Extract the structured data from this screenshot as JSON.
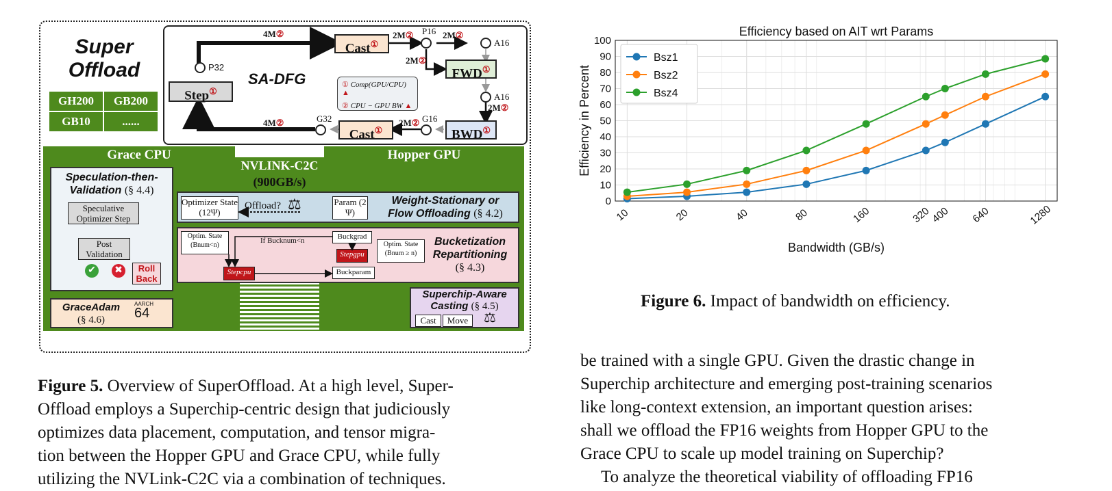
{
  "figure5": {
    "title_line1": "Super",
    "title_line2": "Offload",
    "chips": [
      "GH200",
      "GB200",
      "GB10",
      "......"
    ],
    "dfg_label": "SA-DFG",
    "nodes": {
      "cast": "Cast",
      "fwd": "FWD",
      "bwd": "BWD",
      "step": "Step"
    },
    "circles": {
      "p16": "P16",
      "a16_top": "A16",
      "a16_bot": "A16",
      "g16": "G16",
      "g32": "G32",
      "p32": "P32"
    },
    "edge_4m": "4M",
    "edge_2m": "2M",
    "mark1": "①",
    "mark2": "②",
    "legend": {
      "comp": "Comp(GPU/CPU)",
      "bw": "CPU − GPU BW"
    },
    "grace_cpu": "Grace CPU",
    "hopper_gpu": "Hopper GPU",
    "nvlink": "NVLINK-C2C",
    "nvlink_bw": "(900GB/s)",
    "spec_title": "Speculation-then-",
    "spec_title2": "Validation",
    "spec_ref": "(§ 4.4)",
    "spec_step": "Speculative Optimizer Step",
    "post_val": "Post Validation",
    "roll_back": "Roll Back",
    "graceadam": "GraceAdam",
    "graceadam_ref": "(§ 4.6)",
    "aarch": "AARCH",
    "aarch_num": "64",
    "optimizer_state": "Optimizer State (12Ψ)",
    "offload_q": "Offload?",
    "param": "Param (2 Ψ)",
    "ws_title": "Weight-Stationary or",
    "ws_title2": "Flow Offloading",
    "ws_ref": "(§ 4.2)",
    "optim_state_lt": "Optim. State (Bnum<n)",
    "if_buck": "If Bucknum<n",
    "buck_grad": "Buckgrad",
    "step_gpu": "Stepgpu",
    "step_cpu": "Stepcpu",
    "buck_param": "Buckparam",
    "optim_state_ge": "Optim. State (Bnum ≥ n)",
    "buck_title": "Bucketization",
    "buck_title2": "Repartitioning",
    "buck_ref": "(§ 4.3)",
    "sc_title": "Superchip-Aware",
    "sc_title2": "Casting",
    "sc_ref": "(§ 4.5)",
    "sc_cast": "Cast",
    "sc_move": "Move"
  },
  "figure5_caption": {
    "label": "Figure 5.",
    "lines": [
      " Overview of SuperOffload. At a high level, Super-",
      "Offload employs a Superchip-centric design that judiciously",
      "optimizes data placement, computation, and tensor migra-",
      "tion between the Hopper GPU and Grace CPU, while fully",
      "utilizing the NVLink-C2C via a combination of techniques."
    ]
  },
  "figure6_caption": {
    "label": "Figure 6.",
    "text": " Impact of bandwidth on efficiency."
  },
  "body_lines": [
    "be trained with a single GPU. Given the drastic change in",
    "Superchip architecture and emerging post-training scenarios",
    "like long-context extension, an important question arises:",
    "shall we offload the FP16 weights from Hopper GPU to the",
    "Grace CPU to scale up model training on Superchip?",
    "To analyze the theoretical viability of offloading FP16"
  ],
  "chart_data": {
    "type": "line",
    "title": "Efficiency based on AIT wrt Params",
    "xlabel": "Bandwidth (GB/s)",
    "ylabel": "Efficiency in Percent",
    "x": [
      10,
      20,
      40,
      80,
      160,
      320,
      400,
      640,
      1280
    ],
    "x_scale": "log",
    "ylim": [
      0,
      100
    ],
    "yticks": [
      0,
      10,
      20,
      30,
      40,
      50,
      60,
      70,
      80,
      90,
      100
    ],
    "grid": true,
    "legend_position": "top-left",
    "series": [
      {
        "name": "Bsz1",
        "color": "#1f77b4",
        "values": [
          1.5,
          3,
          5.5,
          10.5,
          19,
          31.5,
          36.5,
          48,
          65
        ]
      },
      {
        "name": "Bsz2",
        "color": "#ff7f0e",
        "values": [
          3,
          5.5,
          10.5,
          19,
          31.5,
          48,
          53.5,
          65,
          79
        ]
      },
      {
        "name": "Bsz4",
        "color": "#2ca02c",
        "values": [
          5.5,
          10.5,
          19,
          31.5,
          48,
          65,
          70,
          79,
          88.5
        ]
      }
    ]
  }
}
